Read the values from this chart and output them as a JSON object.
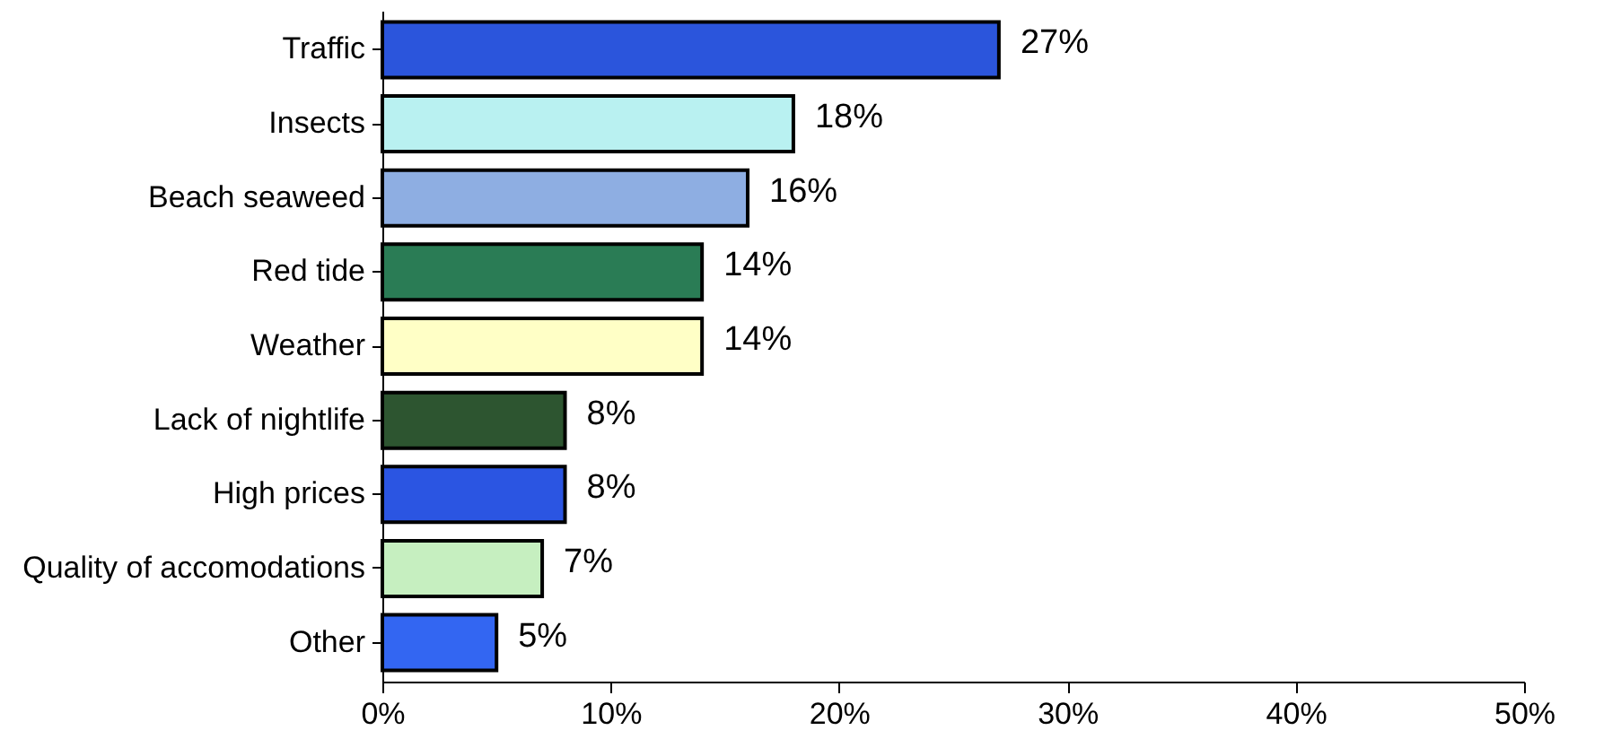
{
  "chart_data": {
    "type": "bar",
    "orientation": "horizontal",
    "categories": [
      "Traffic",
      "Insects",
      "Beach seaweed",
      "Red tide",
      "Weather",
      "Lack of nightlife",
      "High prices",
      "Quality of accomodations",
      "Other"
    ],
    "values": [
      27,
      18,
      16,
      14,
      14,
      8,
      8,
      7,
      5
    ],
    "colors": [
      "#2b55dc",
      "#b9f1f1",
      "#8eaee2",
      "#2a7c55",
      "#ffffc6",
      "#2d5530",
      "#2b55e2",
      "#c6efc0",
      "#3366f2"
    ],
    "value_labels": [
      "27%",
      "18%",
      "16%",
      "14%",
      "14%",
      "8%",
      "8%",
      "7%",
      "5%"
    ],
    "xlim": [
      0,
      50
    ],
    "xticks": [
      {
        "value": 0,
        "label": "0%"
      },
      {
        "value": 10,
        "label": "10%"
      },
      {
        "value": 20,
        "label": "20%"
      },
      {
        "value": 30,
        "label": "30%"
      },
      {
        "value": 40,
        "label": "40%"
      },
      {
        "value": 50,
        "label": "50%"
      }
    ],
    "grid": false
  }
}
